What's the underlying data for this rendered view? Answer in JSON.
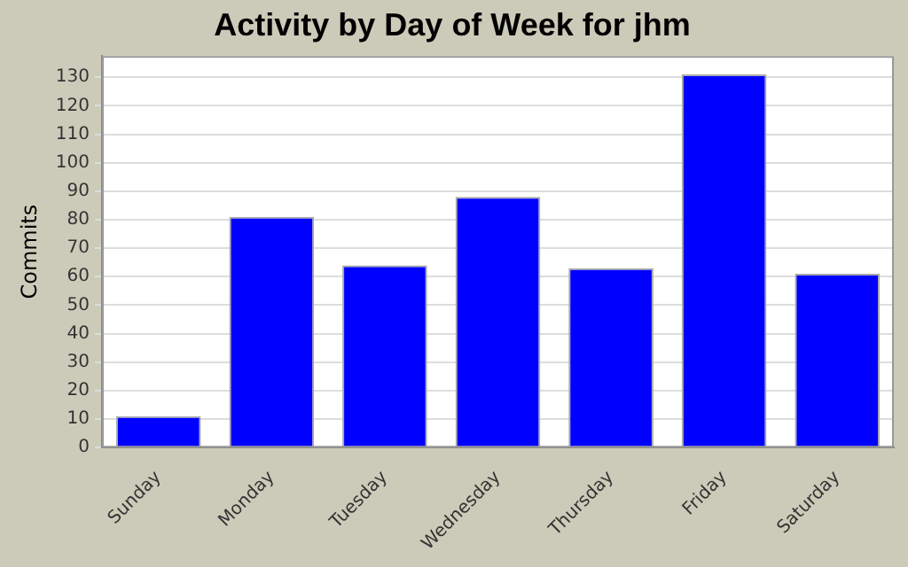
{
  "chart_data": {
    "type": "bar",
    "title": "Activity by Day of Week for jhm",
    "ylabel": "Commits",
    "categories": [
      "Sunday",
      "Monday",
      "Tuesday",
      "Wednesday",
      "Thursday",
      "Friday",
      "Saturday"
    ],
    "values": [
      11,
      81,
      64,
      88,
      63,
      131,
      61
    ],
    "color": "#0000ff",
    "ylim": [
      0,
      137.5
    ],
    "yticks": [
      0,
      10,
      20,
      30,
      40,
      50,
      60,
      70,
      80,
      90,
      100,
      110,
      120,
      130
    ],
    "grid": "y",
    "legend": false
  }
}
